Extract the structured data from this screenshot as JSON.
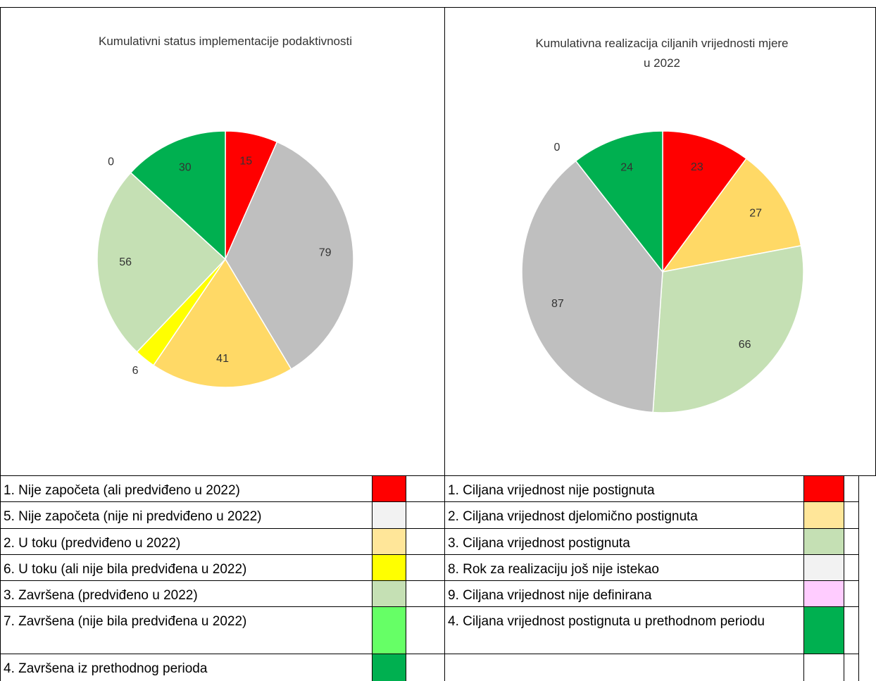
{
  "chart_data": [
    {
      "type": "pie",
      "title": "Kumulativni status implementacije podaktivnosti",
      "values": [
        15,
        79,
        41,
        6,
        56,
        0,
        30
      ],
      "colors": [
        "#ff0000",
        "#bfbfbf",
        "#ffd966",
        "#ffff00",
        "#c5e0b4",
        "#66ff66",
        "#00b050"
      ]
    },
    {
      "type": "pie",
      "title": "Kumulativna realizacija ciljanih vrijednosti mjere u 2022",
      "values": [
        23,
        27,
        66,
        87,
        0,
        24
      ],
      "colors": [
        "#ff0000",
        "#ffd966",
        "#c5e0b4",
        "#bfbfbf",
        "#ffccff",
        "#00b050"
      ]
    }
  ],
  "legends": [
    {
      "rows": [
        {
          "label": "1. Nije započeta (ali predviđeno u 2022)",
          "color": "#ff0000"
        },
        {
          "label": "5. Nije započeta (nije ni predviđeno u 2022)",
          "color": "#f2f2f2"
        },
        {
          "label": "2. U toku (predviđeno u 2022)",
          "color": "#ffe699"
        },
        {
          "label": "6. U toku (ali nije bila predviđena u 2022)",
          "color": "#ffff00"
        },
        {
          "label": "3. Završena (predviđeno u 2022)",
          "color": "#c5e0b4"
        },
        {
          "label": "7. Završena (nije bila predviđena u 2022)",
          "color": "#66ff66"
        },
        {
          "label": "4. Završena iz prethodnog perioda",
          "color": "#00b050"
        }
      ]
    },
    {
      "rows": [
        {
          "label": "1. Ciljana vrijednost nije postignuta",
          "color": "#ff0000"
        },
        {
          "label": "2. Ciljana vrijednost djelomično postignuta",
          "color": "#ffe699"
        },
        {
          "label": "3. Ciljana vrijednost postignuta",
          "color": "#c5e0b4"
        },
        {
          "label": "8. Rok za realizaciju još nije istekao",
          "color": "#f2f2f2"
        },
        {
          "label": "9. Ciljana vrijednost nije definirana",
          "color": "#ffccff"
        },
        {
          "label": "4. Ciljana vrijednost postignuta u prethodnom periodu",
          "color": "#00b050"
        }
      ]
    }
  ]
}
